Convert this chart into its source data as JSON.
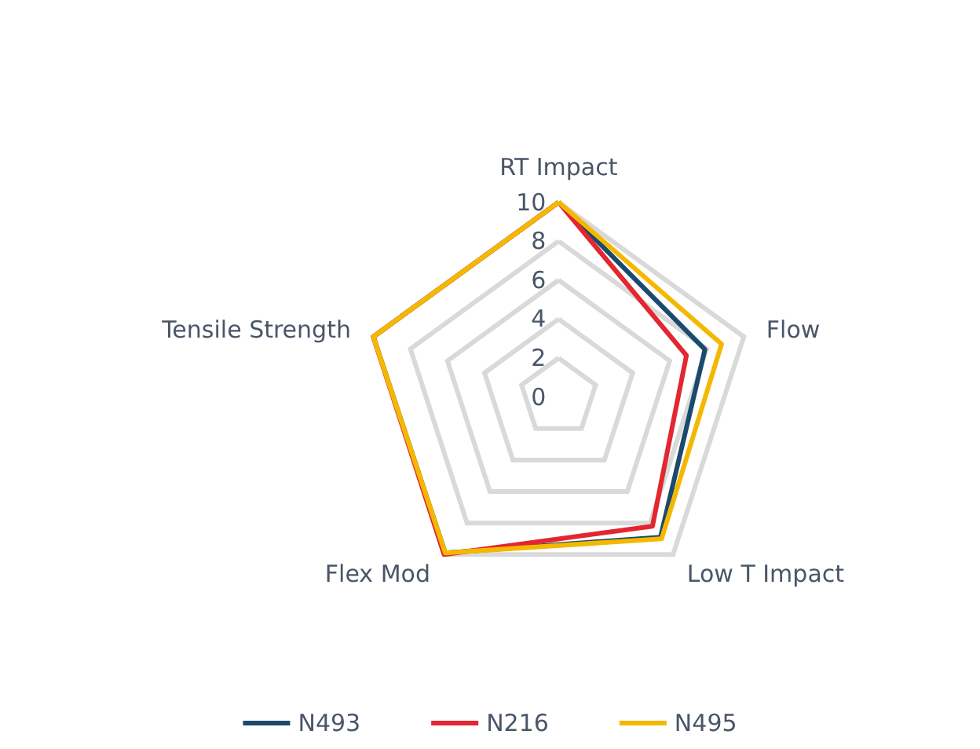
{
  "chart_data": {
    "type": "radar",
    "categories": [
      "RT Impact",
      "Flow",
      "Low T Impact",
      "Flex Mod",
      "Tensile Strength"
    ],
    "ylim": [
      0,
      10
    ],
    "yticks": [
      0,
      2,
      4,
      6,
      8,
      10
    ],
    "grid": true,
    "legend": "bottom",
    "marker": "none",
    "line_style": "solid",
    "series": [
      {
        "name": "N493",
        "color": "#1a4a6e",
        "values": [
          10,
          7.9,
          8.9,
          9.9,
          10
        ]
      },
      {
        "name": "N216",
        "color": "#e3262f",
        "values": [
          10,
          6.9,
          8.2,
          10,
          10
        ]
      },
      {
        "name": "N495",
        "color": "#f5b800",
        "values": [
          10,
          8.8,
          9.0,
          9.9,
          10
        ]
      }
    ]
  }
}
